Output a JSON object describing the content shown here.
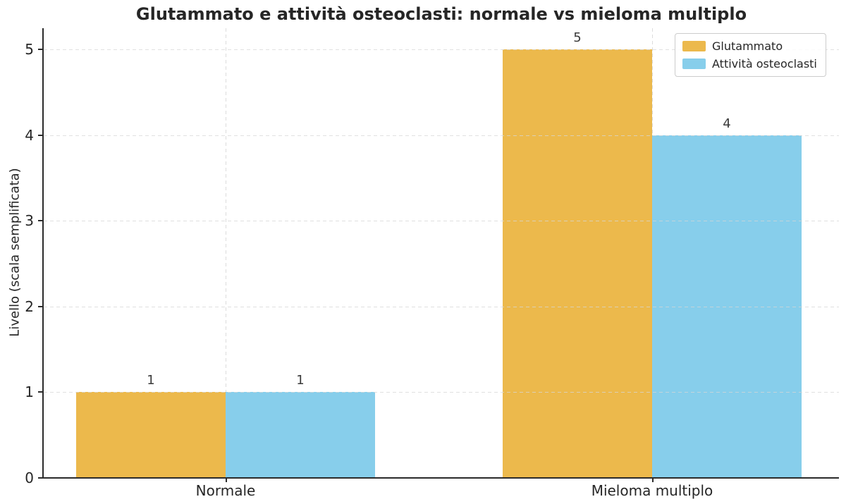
{
  "chart_data": {
    "type": "bar",
    "title": "Glutammato e attività osteoclasti: normale vs mieloma multiplo",
    "xlabel": "",
    "ylabel": "Livello (scala semplificata)",
    "categories": [
      "Normale",
      "Mieloma multiplo"
    ],
    "series": [
      {
        "name": "Glutammato",
        "color": "#ECB94C",
        "values": [
          1,
          5
        ]
      },
      {
        "name": "Attività osteoclasti",
        "color": "#87CEEB",
        "values": [
          1,
          4
        ]
      }
    ],
    "bar_value_labels": [
      [
        "1",
        "5"
      ],
      [
        "1",
        "4"
      ]
    ],
    "yticks": [
      0,
      1,
      2,
      3,
      4,
      5
    ],
    "ylim": [
      0,
      5.25
    ],
    "grid": "dashed",
    "legend_position": "upper right"
  },
  "colors": {
    "text": "#262626",
    "bar_label_text": "#3a3a3a",
    "grid": "#dcdcdc",
    "spine": "#2b2b2b",
    "legend_border": "#cccccc",
    "background": "#ffffff"
  }
}
